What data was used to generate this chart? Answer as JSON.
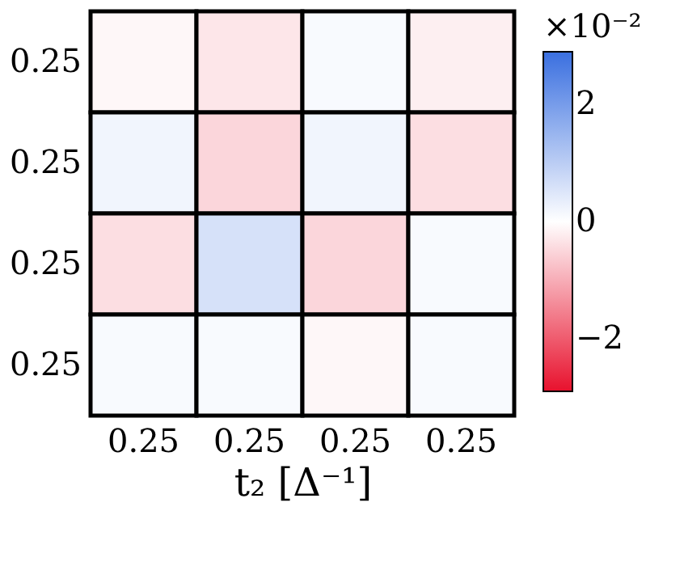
{
  "chart_data": {
    "type": "heatmap",
    "xlabel": "t₂ [Δ⁻¹]",
    "clabel": "×10⁻²",
    "categories": [
      "0.25",
      "0.25",
      "0.25",
      "0.25"
    ],
    "y_categories": [
      "0.25",
      "0.25",
      "0.25",
      "0.25"
    ],
    "cells": [
      [
        -0.1,
        -0.3,
        0.1,
        -0.2
      ],
      [
        0.2,
        -0.5,
        0.2,
        -0.4
      ],
      [
        -0.4,
        0.6,
        -0.5,
        0.1
      ],
      [
        0.1,
        0.1,
        -0.1,
        0.1
      ]
    ],
    "clim": [
      -2.9,
      2.9
    ],
    "cticks": [
      -2,
      0,
      2
    ],
    "colors": [
      "#e8112d",
      "#ffffff",
      "#3a6fe0"
    ]
  }
}
